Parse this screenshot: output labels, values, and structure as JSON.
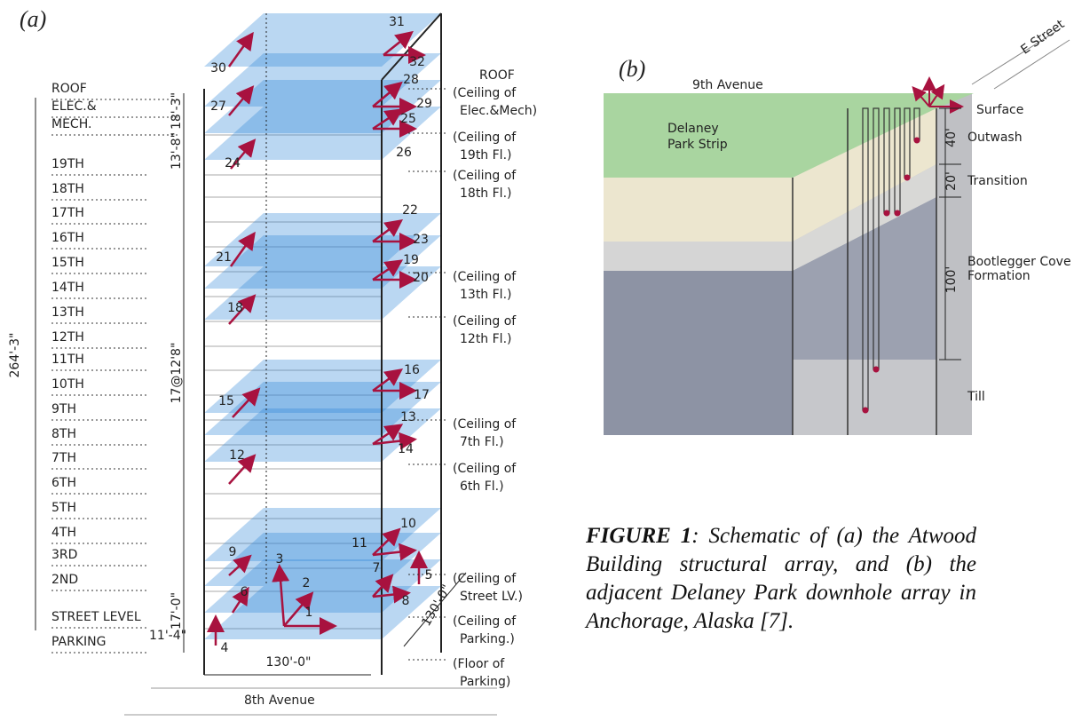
{
  "panel_a": {
    "label": "(a)",
    "floors": [
      "ROOF",
      "ELEC.&",
      "MECH.",
      "19TH",
      "18TH",
      "17TH",
      "16TH",
      "15TH",
      "14TH",
      "13TH",
      "12TH",
      "11TH",
      "10TH",
      "9TH",
      "8TH",
      "7TH",
      "6TH",
      "5TH",
      "4TH",
      "3RD",
      "2ND",
      "STREET LEVEL",
      "PARKING"
    ],
    "dimensions": [
      "264'-3\"",
      "17@12'8\"",
      "13'-8\"",
      "18'-3\"",
      "17'-0\"",
      "11'-4\""
    ],
    "sensors": [
      "1",
      "2",
      "3",
      "4",
      "5",
      "6",
      "7",
      "8",
      "9",
      "10",
      "11",
      "12",
      "13",
      "14",
      "15",
      "16",
      "17",
      "18",
      "19",
      "20",
      "21",
      "22",
      "23",
      "24",
      "25",
      "26",
      "27",
      "28",
      "29",
      "30",
      "31",
      "32"
    ],
    "roof_label": "ROOF",
    "ceiling_labels": [
      [
        "(Ceiling of",
        "Elec.&Mech)"
      ],
      [
        "(Ceiling of",
        "19th Fl.)"
      ],
      [
        "(Ceiling of",
        "18th Fl.)"
      ],
      [
        "(Ceiling of",
        "13th Fl.)"
      ],
      [
        "(Ceiling of",
        "12th Fl.)"
      ],
      [
        "(Ceiling of",
        "7th Fl.)"
      ],
      [
        "(Ceiling of",
        "6th Fl.)"
      ],
      [
        "(Ceiling of",
        "Street LV.)"
      ],
      [
        "(Ceiling of",
        "Parking.)"
      ],
      [
        "(Floor of",
        "Parking)"
      ]
    ],
    "width": "130'-0\"",
    "depth": "130'-0\"",
    "street": "8th Avenue"
  },
  "panel_b": {
    "label": "(b)",
    "street_1": "9th Avenue",
    "street_2": "E Street",
    "park": [
      "Delaney",
      "Park Strip"
    ],
    "layers": [
      "Surface",
      "Outwash",
      "Transition",
      "Bootlegger Cove",
      "Formation",
      "Till"
    ],
    "depths": [
      "40'",
      "20'",
      "100'"
    ]
  },
  "caption": {
    "figure": "FIGURE 1",
    "text": ": Schematic of (a) the Atwood Building structural array, and (b) the adjacent Delaney Park downhole array in Anchorage, Alaska [7]."
  }
}
